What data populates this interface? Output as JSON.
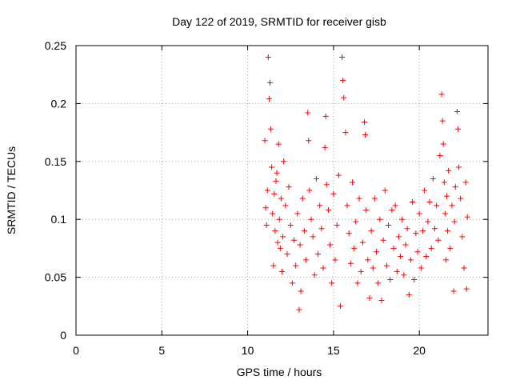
{
  "chart_data": {
    "type": "scatter",
    "title": "Day 122 of 2019, SRMTID for receiver gisb",
    "xlabel": "GPS time / hours",
    "ylabel": "SRMTID / TECUs",
    "xlim": [
      0,
      24
    ],
    "ylim": [
      0,
      0.25
    ],
    "x_ticks": [
      "0",
      "5",
      "10",
      "15",
      "20"
    ],
    "y_ticks": [
      "0",
      "0.05",
      "0.1",
      "0.15",
      "0.2",
      "0.25"
    ],
    "grid": true,
    "legend": "none",
    "marker": "plus",
    "color": "#ff0000",
    "series": [
      {
        "points": [
          [
            11.0,
            0.168
          ],
          [
            11.05,
            0.11
          ],
          [
            11.1,
            0.095
          ],
          [
            11.15,
            0.125
          ],
          [
            11.2,
            0.24
          ],
          [
            11.25,
            0.204
          ],
          [
            11.3,
            0.218
          ],
          [
            11.35,
            0.178
          ],
          [
            11.4,
            0.145
          ],
          [
            11.45,
            0.105
          ],
          [
            11.5,
            0.06
          ],
          [
            11.55,
            0.122
          ],
          [
            11.6,
            0.09
          ],
          [
            11.65,
            0.133
          ],
          [
            11.7,
            0.14
          ],
          [
            11.75,
            0.08
          ],
          [
            11.8,
            0.165
          ],
          [
            11.85,
            0.1
          ],
          [
            11.9,
            0.075
          ],
          [
            11.95,
            0.118
          ],
          [
            12.0,
            0.055
          ],
          [
            12.05,
            0.085
          ],
          [
            12.1,
            0.15
          ],
          [
            12.2,
            0.112
          ],
          [
            12.3,
            0.07
          ],
          [
            12.4,
            0.128
          ],
          [
            12.5,
            0.095
          ],
          [
            12.6,
            0.045
          ],
          [
            12.7,
            0.082
          ],
          [
            12.8,
            0.06
          ],
          [
            12.9,
            0.105
          ],
          [
            13.0,
            0.022
          ],
          [
            13.05,
            0.078
          ],
          [
            13.1,
            0.038
          ],
          [
            13.2,
            0.118
          ],
          [
            13.3,
            0.09
          ],
          [
            13.4,
            0.065
          ],
          [
            13.5,
            0.192
          ],
          [
            13.55,
            0.168
          ],
          [
            13.6,
            0.125
          ],
          [
            13.7,
            0.1
          ],
          [
            13.8,
            0.085
          ],
          [
            13.9,
            0.052
          ],
          [
            14.0,
            0.135
          ],
          [
            14.1,
            0.07
          ],
          [
            14.2,
            0.112
          ],
          [
            14.3,
            0.092
          ],
          [
            14.4,
            0.058
          ],
          [
            14.5,
            0.162
          ],
          [
            14.55,
            0.189
          ],
          [
            14.6,
            0.13
          ],
          [
            14.7,
            0.108
          ],
          [
            14.8,
            0.078
          ],
          [
            14.9,
            0.045
          ],
          [
            15.0,
            0.122
          ],
          [
            15.1,
            0.065
          ],
          [
            15.2,
            0.095
          ],
          [
            15.3,
            0.138
          ],
          [
            15.4,
            0.025
          ],
          [
            15.5,
            0.24
          ],
          [
            15.55,
            0.22
          ],
          [
            15.6,
            0.205
          ],
          [
            15.7,
            0.175
          ],
          [
            15.8,
            0.112
          ],
          [
            15.9,
            0.088
          ],
          [
            16.0,
            0.062
          ],
          [
            16.1,
            0.132
          ],
          [
            16.2,
            0.075
          ],
          [
            16.3,
            0.098
          ],
          [
            16.4,
            0.045
          ],
          [
            16.5,
            0.118
          ],
          [
            16.6,
            0.055
          ],
          [
            16.7,
            0.08
          ],
          [
            16.8,
            0.184
          ],
          [
            16.85,
            0.173
          ],
          [
            16.9,
            0.108
          ],
          [
            17.0,
            0.065
          ],
          [
            17.1,
            0.032
          ],
          [
            17.2,
            0.09
          ],
          [
            17.3,
            0.058
          ],
          [
            17.4,
            0.118
          ],
          [
            17.5,
            0.072
          ],
          [
            17.6,
            0.045
          ],
          [
            17.7,
            0.1
          ],
          [
            17.8,
            0.03
          ],
          [
            17.9,
            0.082
          ],
          [
            18.0,
            0.125
          ],
          [
            18.1,
            0.06
          ],
          [
            18.2,
            0.095
          ],
          [
            18.3,
            0.048
          ],
          [
            18.4,
            0.108
          ],
          [
            18.5,
            0.075
          ],
          [
            18.6,
            0.112
          ],
          [
            18.7,
            0.055
          ],
          [
            18.8,
            0.085
          ],
          [
            18.9,
            0.068
          ],
          [
            19.0,
            0.1
          ],
          [
            19.1,
            0.052
          ],
          [
            19.2,
            0.078
          ],
          [
            19.3,
            0.092
          ],
          [
            19.4,
            0.035
          ],
          [
            19.5,
            0.065
          ],
          [
            19.6,
            0.115
          ],
          [
            19.7,
            0.048
          ],
          [
            19.8,
            0.088
          ],
          [
            19.9,
            0.072
          ],
          [
            20.0,
            0.105
          ],
          [
            20.1,
            0.058
          ],
          [
            20.2,
            0.09
          ],
          [
            20.3,
            0.125
          ],
          [
            20.4,
            0.068
          ],
          [
            20.5,
            0.098
          ],
          [
            20.6,
            0.115
          ],
          [
            20.7,
            0.075
          ],
          [
            20.8,
            0.135
          ],
          [
            20.9,
            0.092
          ],
          [
            21.0,
            0.112
          ],
          [
            21.1,
            0.082
          ],
          [
            21.2,
            0.155
          ],
          [
            21.3,
            0.208
          ],
          [
            21.35,
            0.185
          ],
          [
            21.4,
            0.165
          ],
          [
            21.45,
            0.132
          ],
          [
            21.5,
            0.105
          ],
          [
            21.55,
            0.065
          ],
          [
            21.6,
            0.12
          ],
          [
            21.65,
            0.09
          ],
          [
            21.7,
            0.142
          ],
          [
            21.8,
            0.075
          ],
          [
            21.9,
            0.112
          ],
          [
            22.0,
            0.038
          ],
          [
            22.05,
            0.098
          ],
          [
            22.1,
            0.128
          ],
          [
            22.2,
            0.193
          ],
          [
            22.25,
            0.178
          ],
          [
            22.3,
            0.145
          ],
          [
            22.4,
            0.118
          ],
          [
            22.5,
            0.085
          ],
          [
            22.6,
            0.058
          ],
          [
            22.7,
            0.132
          ],
          [
            22.75,
            0.04
          ],
          [
            22.8,
            0.102
          ]
        ]
      }
    ]
  }
}
